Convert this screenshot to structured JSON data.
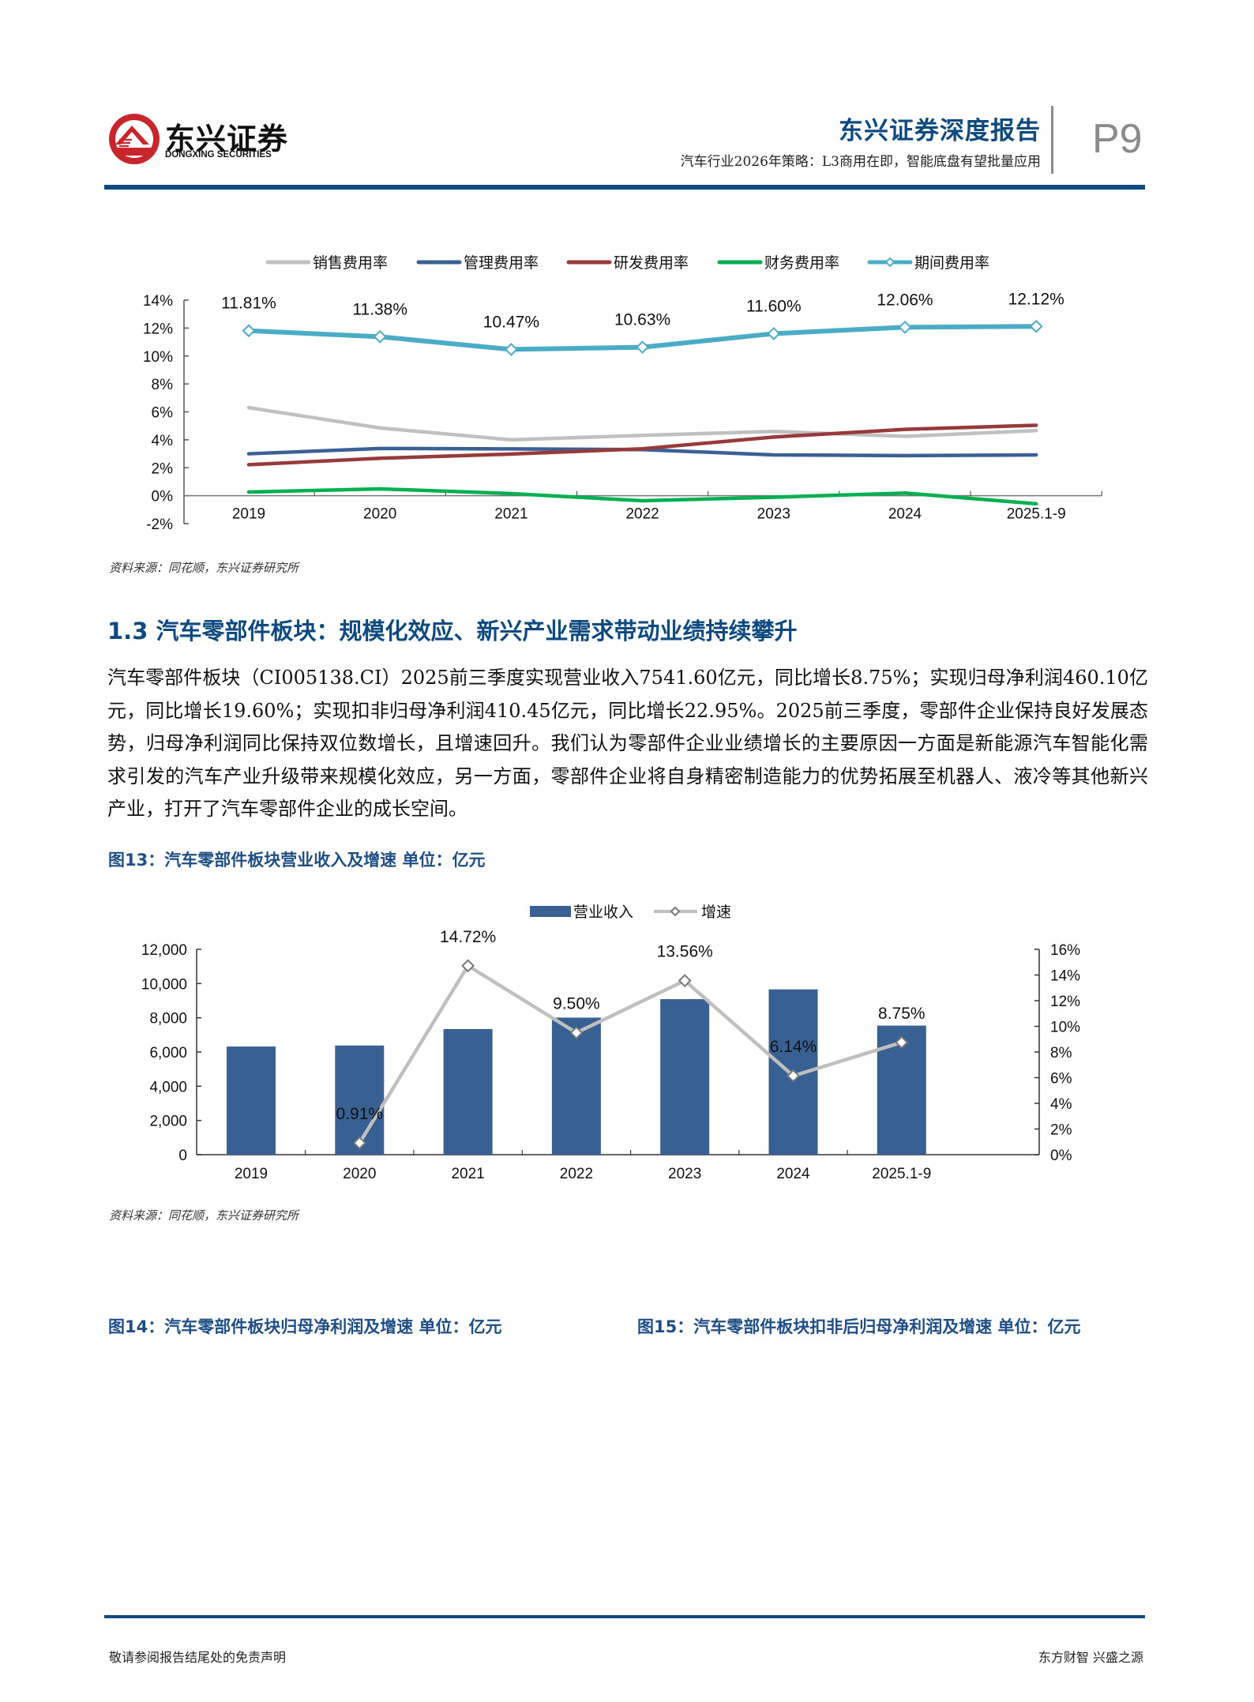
{
  "header": {
    "logo_cn": "东兴证券",
    "logo_en": "DONGXING SECURITIES",
    "report_type": "东兴证券深度报告",
    "subtitle": "汽车行业2026年策略：L3商用在即，智能底盘有望批量应用",
    "page_number": "P9"
  },
  "colors": {
    "brand_blue": "#0e4a80",
    "logo_red": "#c8262c",
    "bar_blue": "#386092",
    "sales_gray": "#c0c0c0",
    "admin_blue": "#3a6096",
    "rd_red": "#963a3a",
    "finance_green": "#00b050",
    "period_cyan": "#4bacc6",
    "growth_gray": "#bfbfbf"
  },
  "chart1": {
    "source": "资料来源：同花顺，东兴证券研究所"
  },
  "section": {
    "heading": "1.3 汽车零部件板块：规模化效应、新兴产业需求带动业绩持续攀升",
    "paragraph": "汽车零部件板块（CI005138.CI）2025前三季度实现营业收入7541.60亿元，同比增长8.75%；实现归母净利润460.10亿元，同比增长19.60%；实现扣非归母净利润410.45亿元，同比增长22.95%。2025前三季度，零部件企业保持良好发展态势，归母净利润同比保持双位数增长，且增速回升。我们认为零部件企业业绩增长的主要原因一方面是新能源汽车智能化需求引发的汽车产业升级带来规模化效应，另一方面，零部件企业将自身精密制造能力的优势拓展至机器人、液冷等其他新兴产业，打开了汽车零部件企业的成长空间。"
  },
  "figure13": {
    "title": "图13：汽车零部件板块营业收入及增速  单位：亿元",
    "source": "资料来源：同花顺，东兴证券研究所"
  },
  "figure14": {
    "title": "图14：汽车零部件板块归母净利润及增速  单位：亿元"
  },
  "figure15": {
    "title": "图15：汽车零部件板块扣非后归母净利润及增速  单位：亿元"
  },
  "footer": {
    "disclaimer": "敬请参阅报告结尾处的免责声明",
    "slogan": "东方财智 兴盛之源"
  },
  "chart_data": [
    {
      "type": "line",
      "title": "",
      "categories": [
        "2019",
        "2020",
        "2021",
        "2022",
        "2023",
        "2024",
        "2025.1-9"
      ],
      "series": [
        {
          "name": "销售费用率",
          "color": "#c0c0c0",
          "values": [
            6.3,
            4.85,
            4.0,
            4.32,
            4.6,
            4.25,
            4.66
          ]
        },
        {
          "name": "管理费用率",
          "color": "#3a6096",
          "values": [
            3.0,
            3.38,
            3.35,
            3.3,
            2.92,
            2.87,
            2.92
          ]
        },
        {
          "name": "研发费用率",
          "color": "#963a3a",
          "values": [
            2.22,
            2.68,
            2.98,
            3.36,
            4.2,
            4.75,
            5.04
          ]
        },
        {
          "name": "财务费用率",
          "color": "#00b050",
          "values": [
            0.26,
            0.49,
            0.15,
            -0.36,
            -0.11,
            0.19,
            -0.58
          ]
        },
        {
          "name": "期间费用率",
          "color": "#4bacc6",
          "marker": "diamond",
          "values": [
            11.81,
            11.38,
            10.47,
            10.63,
            11.6,
            12.06,
            12.12
          ],
          "labels": [
            "11.81%",
            "11.38%",
            "10.47%",
            "10.63%",
            "11.60%",
            "12.06%",
            "12.12%"
          ]
        }
      ],
      "xlabel": "",
      "ylabel": "",
      "ylim": [
        -2,
        14
      ],
      "yticks": [
        "14%",
        "12%",
        "10%",
        "8%",
        "6%",
        "4%",
        "2%",
        "0%",
        "-2%"
      ],
      "legend_position": "top",
      "grid": false
    },
    {
      "type": "bar",
      "title": "图13：汽车零部件板块营业收入及增速  单位：亿元",
      "categories": [
        "2019",
        "2020",
        "2021",
        "2022",
        "2023",
        "2024",
        "2025.1-9"
      ],
      "series": [
        {
          "name": "营业收入",
          "type": "bar",
          "axis": "left",
          "color": "#386092",
          "values": [
            6320,
            6380,
            7340,
            8010,
            9090,
            9660,
            7541.6
          ]
        },
        {
          "name": "增速",
          "type": "line",
          "axis": "right",
          "marker": "diamond",
          "color": "#bfbfbf",
          "values": [
            null,
            0.91,
            14.72,
            9.5,
            13.56,
            6.14,
            8.75
          ],
          "labels": [
            "",
            "0.91%",
            "14.72%",
            "9.50%",
            "13.56%",
            "6.14%",
            "8.75%"
          ]
        }
      ],
      "ylim": [
        0,
        12000
      ],
      "yticks": [
        "12,000",
        "10,000",
        "8,000",
        "6,000",
        "4,000",
        "2,000",
        "0"
      ],
      "y2lim": [
        0,
        16
      ],
      "y2ticks": [
        "16%",
        "14%",
        "12%",
        "10%",
        "8%",
        "6%",
        "4%",
        "2%",
        "0%"
      ],
      "legend_position": "top",
      "grid": false
    }
  ]
}
